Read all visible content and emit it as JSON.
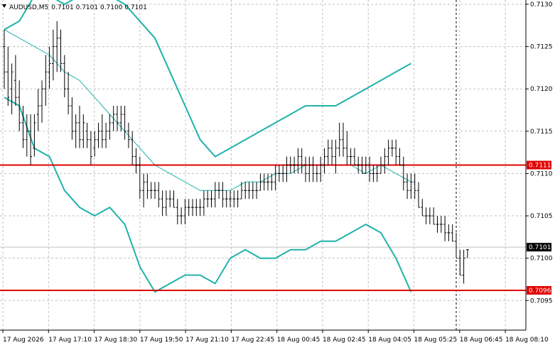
{
  "chart_data": {
    "type": "candlestick",
    "symbol": "AUDUSD,M5",
    "ohlc_header": "0.7101 0.7101 0.7100 0.7101",
    "ylim": [
      0.70915,
      0.71305
    ],
    "y_ticks": [
      "0.7130",
      "0.7125",
      "0.7120",
      "0.7115",
      "0.7110",
      "0.7105",
      "0.7100",
      "0.7095"
    ],
    "x_labels": [
      "17 Aug 2026",
      "17 Aug 17:10",
      "17 Aug 18:30",
      "17 Aug 19:50",
      "17 Aug 21:10",
      "17 Aug 22:45",
      "18 Aug 00:45",
      "18 Aug 02:45",
      "18 Aug 04:05",
      "18 Aug 05:25",
      "18 Aug 06:45",
      "18 Aug 08:10"
    ],
    "horizontal_levels": [
      {
        "label": "0.7111",
        "value": 0.7111,
        "color": "#e00000"
      },
      {
        "label": "0.7096",
        "value": 0.70962,
        "color": "#e00000"
      }
    ],
    "current_price": {
      "label": "0.7101",
      "value": 0.71013
    },
    "vertical_marker_index": 120,
    "grid": true,
    "colors": {
      "bollinger": "#20b2aa",
      "level": "#e00000",
      "candle": "#000000",
      "grid": "#c0c0c0"
    },
    "bars": [
      [
        0.7125,
        0.7127,
        0.712,
        0.7122
      ],
      [
        0.7122,
        0.7125,
        0.7118,
        0.7119
      ],
      [
        0.712,
        0.7123,
        0.7117,
        0.7122
      ],
      [
        0.7121,
        0.7124,
        0.7118,
        0.7119
      ],
      [
        0.7119,
        0.7121,
        0.7115,
        0.7116
      ],
      [
        0.7116,
        0.7118,
        0.7113,
        0.7114
      ],
      [
        0.7114,
        0.7117,
        0.7112,
        0.7115
      ],
      [
        0.7115,
        0.7117,
        0.7111,
        0.7112
      ],
      [
        0.7113,
        0.7117,
        0.7112,
        0.7116
      ],
      [
        0.7117,
        0.712,
        0.7115,
        0.7118
      ],
      [
        0.7118,
        0.7121,
        0.7116,
        0.712
      ],
      [
        0.712,
        0.7124,
        0.7118,
        0.7122
      ],
      [
        0.7122,
        0.7125,
        0.712,
        0.7123
      ],
      [
        0.7123,
        0.7127,
        0.7121,
        0.7125
      ],
      [
        0.7125,
        0.7128,
        0.7122,
        0.7126
      ],
      [
        0.7126,
        0.7127,
        0.7122,
        0.7123
      ],
      [
        0.7123,
        0.7124,
        0.7119,
        0.712
      ],
      [
        0.712,
        0.7122,
        0.7117,
        0.7118
      ],
      [
        0.7118,
        0.7119,
        0.7114,
        0.7115
      ],
      [
        0.7115,
        0.7117,
        0.7113,
        0.7116
      ],
      [
        0.7116,
        0.7118,
        0.7113,
        0.7114
      ],
      [
        0.7114,
        0.7117,
        0.7113,
        0.7116
      ],
      [
        0.7115,
        0.7116,
        0.7113,
        0.7114
      ],
      [
        0.7114,
        0.7115,
        0.7111,
        0.7112
      ],
      [
        0.7113,
        0.7115,
        0.7112,
        0.7114
      ],
      [
        0.7114,
        0.7116,
        0.7113,
        0.7115
      ],
      [
        0.7115,
        0.7117,
        0.7113,
        0.7114
      ],
      [
        0.7114,
        0.7116,
        0.7113,
        0.7115
      ],
      [
        0.7115,
        0.7117,
        0.7114,
        0.7116
      ],
      [
        0.7116,
        0.7118,
        0.7115,
        0.7117
      ],
      [
        0.7117,
        0.7118,
        0.7115,
        0.7116
      ],
      [
        0.7116,
        0.7118,
        0.7115,
        0.7117
      ],
      [
        0.7117,
        0.7118,
        0.7114,
        0.7115
      ],
      [
        0.7115,
        0.7116,
        0.7113,
        0.7114
      ],
      [
        0.7114,
        0.7115,
        0.7111,
        0.7112
      ],
      [
        0.7112,
        0.7113,
        0.711,
        0.7111
      ],
      [
        0.7111,
        0.7112,
        0.7107,
        0.7108
      ],
      [
        0.7108,
        0.711,
        0.7106,
        0.7109
      ],
      [
        0.7109,
        0.711,
        0.7107,
        0.7108
      ],
      [
        0.7108,
        0.7109,
        0.7107,
        0.7108
      ],
      [
        0.7108,
        0.7109,
        0.7107,
        0.7108
      ],
      [
        0.7108,
        0.7109,
        0.7106,
        0.7107
      ],
      [
        0.7107,
        0.7108,
        0.7105,
        0.7106
      ],
      [
        0.7106,
        0.7108,
        0.7105,
        0.7107
      ],
      [
        0.7107,
        0.7108,
        0.7106,
        0.7107
      ],
      [
        0.7107,
        0.7108,
        0.7106,
        0.7106
      ],
      [
        0.7106,
        0.7107,
        0.7104,
        0.7105
      ],
      [
        0.7105,
        0.7106,
        0.7104,
        0.7105
      ],
      [
        0.7105,
        0.7107,
        0.7104,
        0.7106
      ],
      [
        0.7106,
        0.7107,
        0.7105,
        0.7106
      ],
      [
        0.7106,
        0.7107,
        0.7105,
        0.7106
      ],
      [
        0.7106,
        0.7107,
        0.7105,
        0.7106
      ],
      [
        0.7106,
        0.7107,
        0.7105,
        0.7106
      ],
      [
        0.7106,
        0.7108,
        0.7105,
        0.7107
      ],
      [
        0.7107,
        0.7108,
        0.7106,
        0.7107
      ],
      [
        0.7107,
        0.7108,
        0.7106,
        0.7107
      ],
      [
        0.7107,
        0.7109,
        0.7106,
        0.7108
      ],
      [
        0.7108,
        0.7109,
        0.7107,
        0.7108
      ],
      [
        0.7108,
        0.7109,
        0.7106,
        0.7107
      ],
      [
        0.7107,
        0.7108,
        0.7106,
        0.7107
      ],
      [
        0.7107,
        0.7108,
        0.7106,
        0.7107
      ],
      [
        0.7107,
        0.7108,
        0.7106,
        0.7107
      ],
      [
        0.7107,
        0.7108,
        0.7106,
        0.7107
      ],
      [
        0.7107,
        0.7109,
        0.7107,
        0.7108
      ],
      [
        0.7108,
        0.7109,
        0.7107,
        0.7108
      ],
      [
        0.7108,
        0.7109,
        0.7107,
        0.7108
      ],
      [
        0.7108,
        0.7109,
        0.7107,
        0.7108
      ],
      [
        0.7108,
        0.7109,
        0.7107,
        0.7108
      ],
      [
        0.7108,
        0.711,
        0.7108,
        0.7109
      ],
      [
        0.7109,
        0.711,
        0.7108,
        0.7109
      ],
      [
        0.7109,
        0.711,
        0.7108,
        0.7109
      ],
      [
        0.7109,
        0.711,
        0.7108,
        0.7109
      ],
      [
        0.7109,
        0.7111,
        0.7108,
        0.711
      ],
      [
        0.711,
        0.7111,
        0.7109,
        0.711
      ],
      [
        0.711,
        0.7111,
        0.7109,
        0.711
      ],
      [
        0.711,
        0.7112,
        0.7109,
        0.7111
      ],
      [
        0.7111,
        0.7112,
        0.711,
        0.7111
      ],
      [
        0.7111,
        0.7112,
        0.711,
        0.7111
      ],
      [
        0.7111,
        0.7113,
        0.711,
        0.7112
      ],
      [
        0.7112,
        0.7113,
        0.711,
        0.7111
      ],
      [
        0.7111,
        0.7112,
        0.7109,
        0.711
      ],
      [
        0.711,
        0.7112,
        0.7109,
        0.7111
      ],
      [
        0.7111,
        0.7112,
        0.7109,
        0.711
      ],
      [
        0.711,
        0.7111,
        0.7109,
        0.711
      ],
      [
        0.711,
        0.7112,
        0.7109,
        0.7111
      ],
      [
        0.7111,
        0.7113,
        0.711,
        0.7112
      ],
      [
        0.7112,
        0.7114,
        0.7111,
        0.7113
      ],
      [
        0.7113,
        0.7114,
        0.7111,
        0.7112
      ],
      [
        0.7112,
        0.7114,
        0.711,
        0.7113
      ],
      [
        0.7113,
        0.7116,
        0.7112,
        0.7114
      ],
      [
        0.7114,
        0.7116,
        0.7112,
        0.7113
      ],
      [
        0.7113,
        0.7115,
        0.7111,
        0.7112
      ],
      [
        0.7112,
        0.7113,
        0.7111,
        0.7112
      ],
      [
        0.7112,
        0.7113,
        0.7111,
        0.7111
      ],
      [
        0.7111,
        0.7112,
        0.711,
        0.7111
      ],
      [
        0.7111,
        0.7112,
        0.711,
        0.711
      ],
      [
        0.711,
        0.7112,
        0.711,
        0.7111
      ],
      [
        0.7111,
        0.7112,
        0.7109,
        0.711
      ],
      [
        0.711,
        0.7111,
        0.7109,
        0.711
      ],
      [
        0.711,
        0.7111,
        0.7109,
        0.711
      ],
      [
        0.711,
        0.7112,
        0.711,
        0.7111
      ],
      [
        0.7111,
        0.7113,
        0.711,
        0.7112
      ],
      [
        0.7112,
        0.7114,
        0.7111,
        0.7113
      ],
      [
        0.7113,
        0.7114,
        0.7112,
        0.7113
      ],
      [
        0.7113,
        0.7114,
        0.7111,
        0.7112
      ],
      [
        0.7112,
        0.7113,
        0.7111,
        0.7111
      ],
      [
        0.7111,
        0.7112,
        0.7108,
        0.7109
      ],
      [
        0.7109,
        0.711,
        0.7107,
        0.7108
      ],
      [
        0.7108,
        0.711,
        0.7107,
        0.7109
      ],
      [
        0.7109,
        0.711,
        0.7107,
        0.7108
      ],
      [
        0.7108,
        0.7109,
        0.7106,
        0.7106
      ],
      [
        0.7106,
        0.7107,
        0.7105,
        0.7105
      ],
      [
        0.7105,
        0.7106,
        0.7104,
        0.7105
      ],
      [
        0.7105,
        0.7106,
        0.7104,
        0.7105
      ],
      [
        0.7105,
        0.7106,
        0.7104,
        0.7104
      ],
      [
        0.7104,
        0.7105,
        0.7103,
        0.7104
      ],
      [
        0.7104,
        0.7105,
        0.7103,
        0.7104
      ],
      [
        0.7104,
        0.7105,
        0.7102,
        0.7103
      ],
      [
        0.7103,
        0.7104,
        0.7102,
        0.7103
      ],
      [
        0.7103,
        0.7104,
        0.7102,
        0.7102
      ],
      [
        0.7102,
        0.7103,
        0.71,
        0.71
      ],
      [
        0.71,
        0.7101,
        0.7098,
        0.7098
      ],
      [
        0.7098,
        0.7101,
        0.7097,
        0.71
      ],
      [
        0.7101,
        0.7101,
        0.71,
        0.7101
      ]
    ],
    "bollinger_upper": [
      [
        0,
        0.7127
      ],
      [
        4,
        0.7128
      ],
      [
        8,
        0.7131
      ],
      [
        12,
        0.7131
      ],
      [
        16,
        0.713
      ],
      [
        20,
        0.7131
      ],
      [
        24,
        0.7132
      ],
      [
        28,
        0.7131
      ],
      [
        32,
        0.713
      ],
      [
        36,
        0.7128
      ],
      [
        40,
        0.7126
      ],
      [
        44,
        0.7122
      ],
      [
        48,
        0.7118
      ],
      [
        52,
        0.7114
      ],
      [
        56,
        0.7112
      ],
      [
        60,
        0.7113
      ],
      [
        64,
        0.7114
      ],
      [
        68,
        0.7115
      ],
      [
        72,
        0.7116
      ],
      [
        76,
        0.7117
      ],
      [
        80,
        0.7118
      ],
      [
        84,
        0.7118
      ],
      [
        88,
        0.7118
      ],
      [
        92,
        0.7119
      ],
      [
        96,
        0.712
      ],
      [
        100,
        0.7121
      ],
      [
        104,
        0.7122
      ],
      [
        108,
        0.7123
      ]
    ],
    "bollinger_middle": [
      [
        0,
        0.7127
      ],
      [
        4,
        0.7126
      ],
      [
        8,
        0.7125
      ],
      [
        12,
        0.7124
      ],
      [
        16,
        0.7122
      ],
      [
        20,
        0.7121
      ],
      [
        24,
        0.7119
      ],
      [
        28,
        0.7117
      ],
      [
        32,
        0.7115
      ],
      [
        36,
        0.7113
      ],
      [
        40,
        0.7111
      ],
      [
        44,
        0.711
      ],
      [
        48,
        0.7109
      ],
      [
        52,
        0.7108
      ],
      [
        56,
        0.7108
      ],
      [
        60,
        0.7108
      ],
      [
        64,
        0.7109
      ],
      [
        68,
        0.7109
      ],
      [
        72,
        0.711
      ],
      [
        76,
        0.711
      ],
      [
        80,
        0.7111
      ],
      [
        84,
        0.7111
      ],
      [
        88,
        0.7111
      ],
      [
        92,
        0.7111
      ],
      [
        96,
        0.711
      ],
      [
        100,
        0.7111
      ],
      [
        104,
        0.711
      ],
      [
        108,
        0.7109
      ]
    ],
    "bollinger_lower": [
      [
        0,
        0.7119
      ],
      [
        4,
        0.7118
      ],
      [
        8,
        0.7113
      ],
      [
        12,
        0.7112
      ],
      [
        16,
        0.7108
      ],
      [
        20,
        0.7106
      ],
      [
        24,
        0.7105
      ],
      [
        28,
        0.7106
      ],
      [
        32,
        0.7104
      ],
      [
        36,
        0.7099
      ],
      [
        40,
        0.7096
      ],
      [
        44,
        0.7097
      ],
      [
        48,
        0.7098
      ],
      [
        52,
        0.7098
      ],
      [
        56,
        0.7097
      ],
      [
        60,
        0.71
      ],
      [
        64,
        0.7101
      ],
      [
        68,
        0.71
      ],
      [
        72,
        0.71
      ],
      [
        76,
        0.7101
      ],
      [
        80,
        0.7101
      ],
      [
        84,
        0.7102
      ],
      [
        88,
        0.7102
      ],
      [
        92,
        0.7103
      ],
      [
        96,
        0.7104
      ],
      [
        100,
        0.7103
      ],
      [
        104,
        0.71
      ],
      [
        108,
        0.7096
      ]
    ]
  }
}
